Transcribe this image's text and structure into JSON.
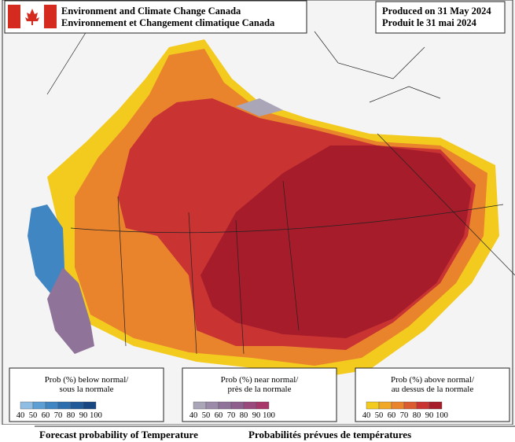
{
  "header": {
    "agency": [
      "Environment and Climate Change Canada",
      "Environnement et Changement climatique Canada"
    ],
    "produced": [
      "Produced on 31 May 2024",
      "Produit le 31 mai 2024"
    ]
  },
  "legends": [
    {
      "title": [
        "Prob (%) below normal/",
        "sous la normale"
      ],
      "scale": [
        40,
        50,
        60,
        70,
        80,
        90,
        100
      ],
      "colors": [
        "#8fbde3",
        "#5c9fd4",
        "#3f86c2",
        "#2d6fae",
        "#215a98",
        "#174682"
      ]
    },
    {
      "title": [
        "Prob (%) near normal/",
        "près de la normale"
      ],
      "scale": [
        40,
        50,
        60,
        70,
        80,
        90,
        100
      ],
      "colors": [
        "#aaa6b8",
        "#9c8aa9",
        "#8f7399",
        "#8e5e8c",
        "#99497c",
        "#a9366a"
      ]
    },
    {
      "title": [
        "Prob (%) above normal/",
        "au dessus de la normale"
      ],
      "scale": [
        40,
        50,
        60,
        70,
        80,
        90,
        100
      ],
      "colors": [
        "#f3cb1f",
        "#f1a826",
        "#e9842d",
        "#dc5c31",
        "#c93433",
        "#a61c2a"
      ]
    }
  ],
  "footer": [
    "Forecast probability of Temperature",
    "Probabilités prévues de températures"
  ]
}
